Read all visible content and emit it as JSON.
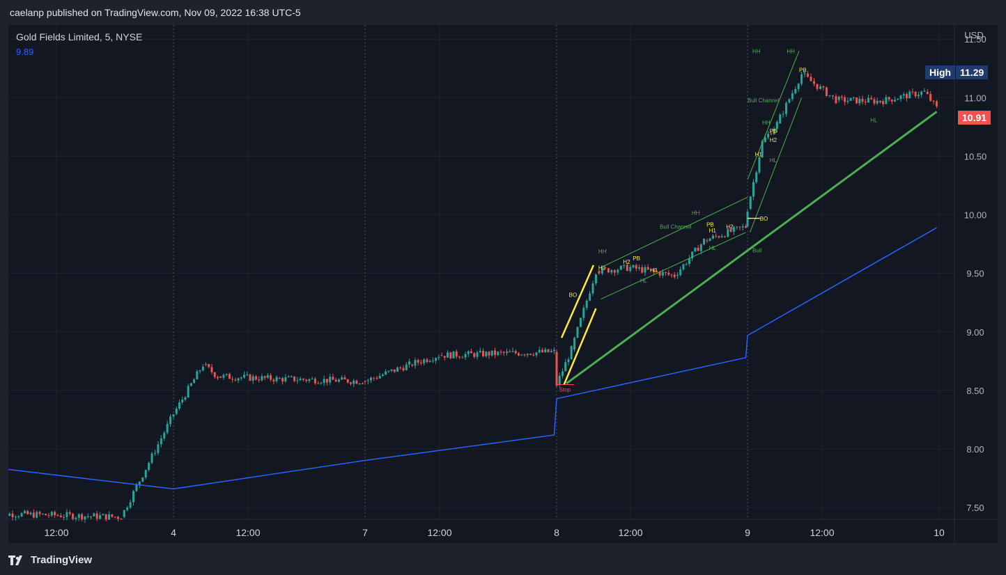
{
  "header": {
    "published": "caelanp published on TradingView.com, Nov 09, 2022 16:38 UTC-5"
  },
  "legend": {
    "symbol": "Gold Fields Limited, 5, NYSE",
    "indicator_value": "9.89"
  },
  "price_axis": {
    "currency": "USD",
    "high_label": "High",
    "high_value": "11.29",
    "last_value": "10.91"
  },
  "footer": {
    "brand": "TradingView"
  },
  "colors": {
    "background": "#131722",
    "up": "#26a69a",
    "down": "#ef5350",
    "ma": "#2962ff",
    "annotation_yellow": "#ffeb3b",
    "annotation_green": "#4caf50",
    "high_badge": "#1e3a6e",
    "last_badge": "#ef5350"
  },
  "chart_data": {
    "type": "line",
    "title": "Gold Fields Limited, 5, NYSE",
    "ylabel": "USD",
    "ylim": [
      7.4,
      11.62
    ],
    "yticks": [
      "11.50",
      "11.00",
      "10.50",
      "10.00",
      "9.50",
      "9.00",
      "8.50",
      "8.00",
      "7.50"
    ],
    "xticks": [
      "12:00",
      "4",
      "12:00",
      "7",
      "12:00",
      "8",
      "12:00",
      "9",
      "12:00",
      "10"
    ],
    "session_separators": [
      "4",
      "7",
      "8",
      "9"
    ],
    "price_series": {
      "name": "Gold Fields Limited",
      "approx_close_path": [
        [
          "3 11:00",
          7.45
        ],
        [
          "3 15:30",
          7.42
        ],
        [
          "4 09:30",
          8.3
        ],
        [
          "4 10:30",
          8.72
        ],
        [
          "4 11:00",
          8.62
        ],
        [
          "4 13:00",
          8.6
        ],
        [
          "4 15:55",
          8.58
        ],
        [
          "7 09:30",
          8.58
        ],
        [
          "7 11:00",
          8.72
        ],
        [
          "7 12:00",
          8.8
        ],
        [
          "7 15:55",
          8.83
        ],
        [
          "8 09:30",
          8.55
        ],
        [
          "8 10:00",
          8.85
        ],
        [
          "8 10:50",
          9.52
        ],
        [
          "8 12:00",
          9.55
        ],
        [
          "8 13:30",
          9.48
        ],
        [
          "8 14:30",
          9.78
        ],
        [
          "8 15:55",
          9.9
        ],
        [
          "9 09:30",
          10.05
        ],
        [
          "9 10:00",
          10.62
        ],
        [
          "9 10:30",
          10.78
        ],
        [
          "9 11:20",
          11.2
        ],
        [
          "9 12:30",
          10.98
        ],
        [
          "9 14:00",
          10.97
        ],
        [
          "9 15:30",
          11.05
        ],
        [
          "9 15:55",
          10.91
        ]
      ],
      "high": 11.29,
      "last": 10.91
    },
    "moving_average": {
      "approx_path": [
        [
          "3 09:30",
          7.89
        ],
        [
          "4 09:30",
          7.66
        ],
        [
          "4 15:55",
          7.9
        ],
        [
          "7 15:55",
          8.12
        ],
        [
          "8 09:30",
          8.43
        ],
        [
          "8 15:55",
          8.78
        ],
        [
          "9 09:30",
          8.97
        ],
        [
          "9 15:55",
          9.89
        ]
      ],
      "last": 9.89
    },
    "annotations": [
      {
        "text": "BO",
        "color": "yellow"
      },
      {
        "text": "Stop",
        "color": "red"
      },
      {
        "text": "HH",
        "color": "green"
      },
      {
        "text": "H1",
        "color": "yellow"
      },
      {
        "text": "H2",
        "color": "yellow"
      },
      {
        "text": "PB",
        "color": "yellow"
      },
      {
        "text": "H3",
        "color": "yellow"
      },
      {
        "text": "HL",
        "color": "green"
      },
      {
        "text": "Bull Channel",
        "color": "green"
      },
      {
        "text": "HH",
        "color": "green"
      },
      {
        "text": "PB",
        "color": "yellow"
      },
      {
        "text": "H1",
        "color": "yellow"
      },
      {
        "text": "H2",
        "color": "yellow"
      },
      {
        "text": "HL",
        "color": "green"
      },
      {
        "text": "BO",
        "color": "yellow"
      },
      {
        "text": "Bull",
        "color": "green"
      },
      {
        "text": "HH",
        "color": "green"
      },
      {
        "text": "Bull Channel",
        "color": "green"
      },
      {
        "text": "HH",
        "color": "green"
      },
      {
        "text": "PB",
        "color": "yellow"
      },
      {
        "text": "H1",
        "color": "yellow"
      },
      {
        "text": "H2",
        "color": "yellow"
      },
      {
        "text": "HL",
        "color": "green"
      },
      {
        "text": "HH",
        "color": "green"
      },
      {
        "text": "PB",
        "color": "yellow"
      },
      {
        "text": "HL",
        "color": "green"
      }
    ]
  }
}
